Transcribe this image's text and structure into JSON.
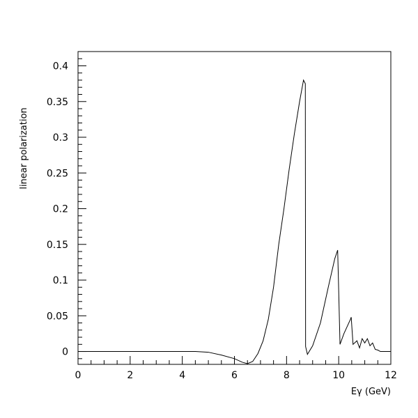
{
  "chart_data": {
    "type": "line",
    "xlabel": "Eγ (GeV)",
    "ylabel": "linear polarization",
    "xlim": [
      0,
      12
    ],
    "ylim": [
      -0.018,
      0.42
    ],
    "xticks": [
      0,
      2,
      4,
      6,
      8,
      10,
      12
    ],
    "xtick_labels": [
      "0",
      "2",
      "4",
      "6",
      "8",
      "10",
      "12"
    ],
    "yticks": [
      0,
      0.05,
      0.1,
      0.15,
      0.2,
      0.25,
      0.3,
      0.35,
      0.4
    ],
    "ytick_labels": [
      "0",
      "0.05",
      "0.1",
      "0.15",
      "0.2",
      "0.25",
      "0.3",
      "0.35",
      "0.4"
    ],
    "grid": false,
    "series": [
      {
        "color": "#000000",
        "x": [
          0,
          4.5,
          5.0,
          5.5,
          6.0,
          6.3,
          6.5,
          6.7,
          6.9,
          7.1,
          7.3,
          7.5,
          7.7,
          7.9,
          8.1,
          8.3,
          8.5,
          8.65,
          8.72,
          8.73,
          8.8,
          9.0,
          9.3,
          9.6,
          9.85,
          9.96,
          9.99,
          10.05,
          10.2,
          10.45,
          10.48,
          10.55,
          10.7,
          10.8,
          10.9,
          11.0,
          11.1,
          11.2,
          11.3,
          11.4,
          11.5,
          11.6,
          12.0
        ],
        "y": [
          0,
          0,
          -0.001,
          -0.005,
          -0.01,
          -0.015,
          -0.017,
          -0.014,
          -0.003,
          0.015,
          0.045,
          0.09,
          0.15,
          0.2,
          0.255,
          0.305,
          0.35,
          0.38,
          0.375,
          0.007,
          -0.004,
          0.008,
          0.04,
          0.09,
          0.13,
          0.142,
          0.1,
          0.01,
          0.025,
          0.045,
          0.048,
          0.01,
          0.015,
          0.005,
          0.018,
          0.012,
          0.018,
          0.008,
          0.012,
          0.003,
          0.002,
          0.0,
          0.0
        ]
      }
    ]
  }
}
